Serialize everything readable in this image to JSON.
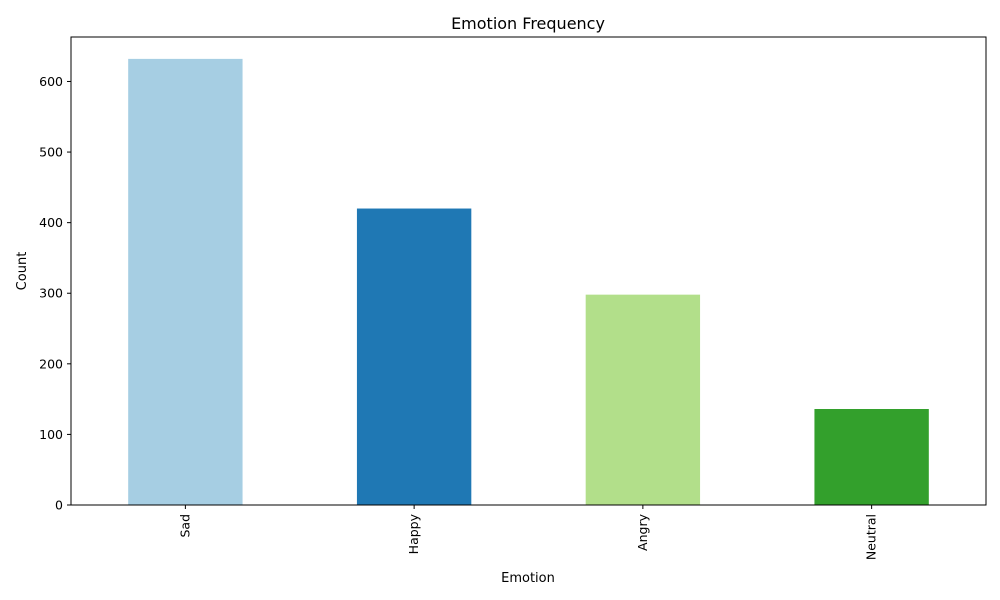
{
  "chart_data": {
    "type": "bar",
    "title": "Emotion Frequency",
    "xlabel": "Emotion",
    "ylabel": "Count",
    "categories": [
      "Sad",
      "Happy",
      "Angry",
      "Neutral"
    ],
    "values": [
      632,
      420,
      298,
      136
    ],
    "colors": [
      "#a6cee3",
      "#1f78b4",
      "#b2df8a",
      "#33a02c"
    ],
    "yticks": [
      0,
      100,
      200,
      300,
      400,
      500,
      600
    ],
    "ylim": [
      0,
      663
    ],
    "grid": false,
    "legend": "none"
  }
}
